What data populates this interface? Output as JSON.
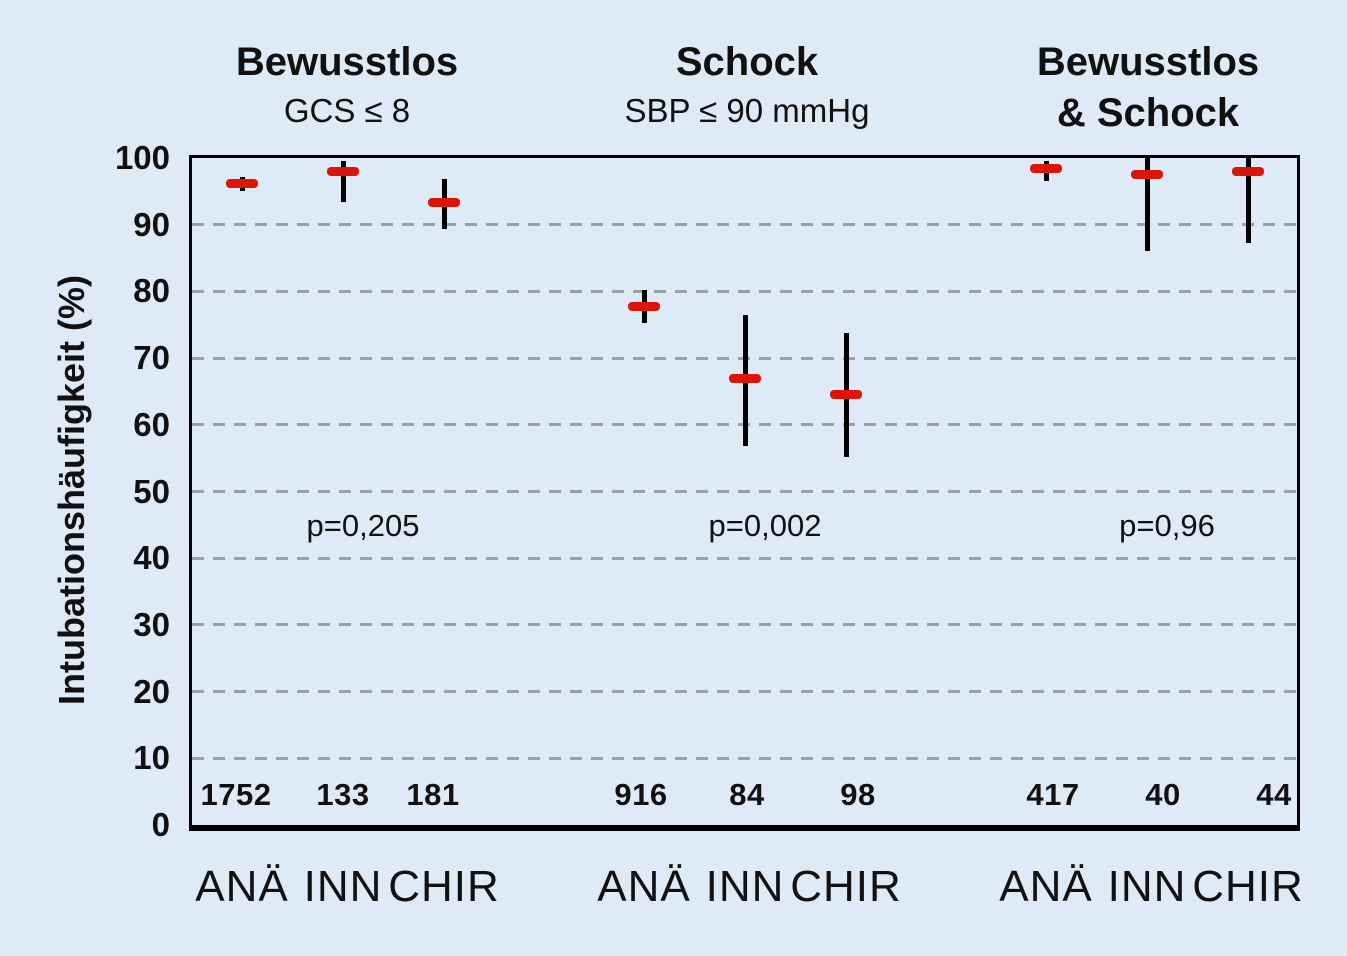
{
  "page": {
    "background_color": "#dfeaf7"
  },
  "chart_data": {
    "type": "scatter",
    "variant": "point-estimates-with-confidence-intervals",
    "title": "",
    "xlabel": "",
    "ylabel": "Intubationshäufigkeit (%)",
    "ylim": [
      0,
      100
    ],
    "yticks": [
      0,
      10,
      20,
      30,
      40,
      50,
      60,
      70,
      80,
      90,
      100
    ],
    "grid": "horizontal dashed lines at 10–90",
    "legend": "none",
    "colors": {
      "estimate_marker": "#dd1408",
      "interval_line": "#000000",
      "gridline": "#9aa0a6",
      "background": "#dfeaf7",
      "text": "#111111"
    },
    "groups": [
      {
        "title": "Bewusstlos",
        "subtitle": "GCS ≤ 8",
        "subtitle_bold": false,
        "p_label": "p=0,205",
        "points": [
          {
            "category": "ANÄ",
            "n": "1752",
            "estimate": 96.2,
            "ci_low": 95.0,
            "ci_high": 97.1
          },
          {
            "category": "INN",
            "n": "133",
            "estimate": 98.0,
            "ci_low": 93.4,
            "ci_high": 99.6
          },
          {
            "category": "CHIR",
            "n": "181",
            "estimate": 93.4,
            "ci_low": 89.3,
            "ci_high": 96.9
          }
        ]
      },
      {
        "title": "Schock",
        "subtitle": "SBP ≤ 90 mmHg",
        "subtitle_bold": false,
        "p_label": "p=0,002",
        "points": [
          {
            "category": "ANÄ",
            "n": "916",
            "estimate": 77.8,
            "ci_low": 75.3,
            "ci_high": 80.2
          },
          {
            "category": "INN",
            "n": "84",
            "estimate": 67.0,
            "ci_low": 56.8,
            "ci_high": 76.5
          },
          {
            "category": "CHIR",
            "n": "98",
            "estimate": 64.6,
            "ci_low": 55.1,
            "ci_high": 73.7
          }
        ]
      },
      {
        "title": "Bewusstlos",
        "subtitle": "& Schock",
        "subtitle_bold": true,
        "p_label": "p=0,96",
        "points": [
          {
            "category": "ANÄ",
            "n": "417",
            "estimate": 98.5,
            "ci_low": 96.6,
            "ci_high": 99.6
          },
          {
            "category": "INN",
            "n": "40",
            "estimate": 97.5,
            "ci_low": 86.0,
            "ci_high": 100
          },
          {
            "category": "CHIR",
            "n": "44",
            "estimate": 98.0,
            "ci_low": 87.3,
            "ci_high": 100
          }
        ]
      }
    ]
  }
}
